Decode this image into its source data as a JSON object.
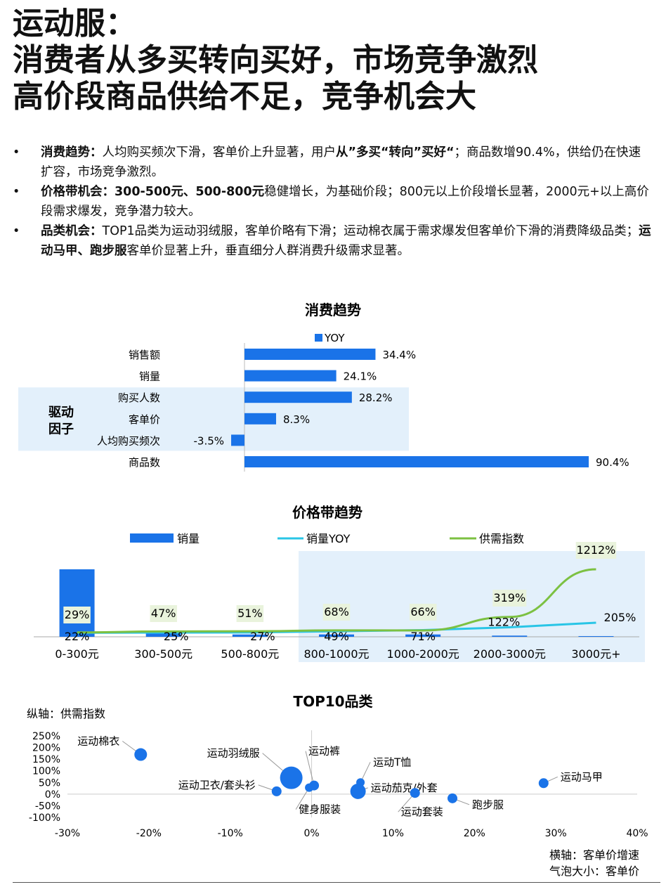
{
  "colors": {
    "bar": "#1a73e8",
    "yoy_line": "#29c5e6",
    "supply_line": "#7cc142",
    "highlight_bg": "#e3f0fb",
    "label_bg": "#e9f3dc"
  },
  "header": {
    "title_lines": [
      "运动服：",
      "消费者从多买转向买好，市场竞争激烈",
      "高价段商品供给不足，竞争机会大"
    ]
  },
  "bullets": [
    {
      "bullet_char": "•",
      "segments": [
        {
          "text": "消费趋势：",
          "bold": true
        },
        {
          "text": "人均购买频次下滑，客单价上升显著，用户",
          "bold": false
        },
        {
          "text": "从”多买“转向”买好“",
          "bold": true
        },
        {
          "text": "；商品数增90.4%，供给仍在快速扩容，市场竞争激烈。",
          "bold": false
        }
      ]
    },
    {
      "bullet_char": "•",
      "segments": [
        {
          "text": "价格带机会：300-500元、500-800元",
          "bold": true
        },
        {
          "text": "稳健增长，为基础价段；800元以上价段增长显著，2000元+以上高价段需求爆发，竞争潜力较大。",
          "bold": false
        }
      ]
    },
    {
      "bullet_char": "•",
      "segments": [
        {
          "text": "品类机会：",
          "bold": true
        },
        {
          "text": "TOP1品类为运动羽绒服，客单价略有下滑；运动棉衣属于需求爆发但客单价下滑的消费降级品类；",
          "bold": false
        },
        {
          "text": "运动马甲、跑步服",
          "bold": true
        },
        {
          "text": "客单价显著上升，垂直细分人群消费升级需求显著。",
          "bold": false
        }
      ]
    }
  ],
  "chart_data": [
    {
      "type": "bar",
      "title": "消费趋势",
      "legend": [
        "YOY"
      ],
      "categories": [
        "销售额",
        "销量",
        "购买人数",
        "客单价",
        "人均购买频次",
        "商品数"
      ],
      "values": [
        34.4,
        24.1,
        28.2,
        8.3,
        -3.5,
        90.4
      ],
      "value_labels": [
        "34.4%",
        "24.1%",
        "28.2%",
        "8.3%",
        "-3.5%",
        "90.4%"
      ],
      "annotation": "驱动因子",
      "annotation_lines": [
        "驱动",
        "因子"
      ],
      "orientation": "horizontal"
    },
    {
      "type": "bar",
      "title": "价格带趋势",
      "categories": [
        "0-300元",
        "300-500元",
        "500-800元",
        "800-1000元",
        "1000-2000元",
        "2000-3000元",
        "3000元+"
      ],
      "series": [
        {
          "name": "销量",
          "type": "bar",
          "values": [
            29,
            2,
            1,
            1,
            1,
            0.5,
            0.3
          ]
        },
        {
          "name": "销量YOY",
          "type": "line",
          "values": [
            22,
            25,
            27,
            49,
            71,
            122,
            205
          ],
          "labels": [
            "22%",
            "25%",
            "27%",
            "49%",
            "71%",
            "122%",
            "205%"
          ]
        },
        {
          "name": "供需指数",
          "type": "line",
          "values": [
            29,
            47,
            51,
            68,
            66,
            319,
            1212
          ],
          "labels": [
            "29%",
            "47%",
            "51%",
            "68%",
            "66%",
            "319%",
            "1212%"
          ]
        }
      ]
    },
    {
      "type": "scatter",
      "title": "TOP10品类",
      "ylabel": "纵轴：供需指数",
      "xlabel": "横轴：客单价增速",
      "size_label": "气泡大小：客单价",
      "xlim": [
        -30,
        40
      ],
      "ylim": [
        -100,
        250
      ],
      "xticks": [
        "-30%",
        "-20%",
        "-10%",
        "0%",
        "10%",
        "20%",
        "30%",
        "40%"
      ],
      "yticks": [
        "250%",
        "200%",
        "150%",
        "100%",
        "50%",
        "0%",
        "-50%",
        "-100%"
      ],
      "points": [
        {
          "name": "运动棉衣",
          "x": -21,
          "y": 170,
          "size": 9
        },
        {
          "name": "运动羽绒服",
          "x": -2.5,
          "y": 70,
          "size": 16
        },
        {
          "name": "运动卫衣/套头衫",
          "x": -4.3,
          "y": 12,
          "size": 7
        },
        {
          "name": "运动裤",
          "x": 0.3,
          "y": 37,
          "size": 7
        },
        {
          "name": "健身服装",
          "x": -0.3,
          "y": 28,
          "size": 6
        },
        {
          "name": "运动T恤",
          "x": 6,
          "y": 50,
          "size": 6
        },
        {
          "name": "运动茄克/外套",
          "x": 5.7,
          "y": 12,
          "size": 11
        },
        {
          "name": "运动套装",
          "x": 12.7,
          "y": 5,
          "size": 7
        },
        {
          "name": "跑步服",
          "x": 17.3,
          "y": -18,
          "size": 7
        },
        {
          "name": "运动马甲",
          "x": 28.5,
          "y": 47,
          "size": 7
        }
      ]
    }
  ]
}
